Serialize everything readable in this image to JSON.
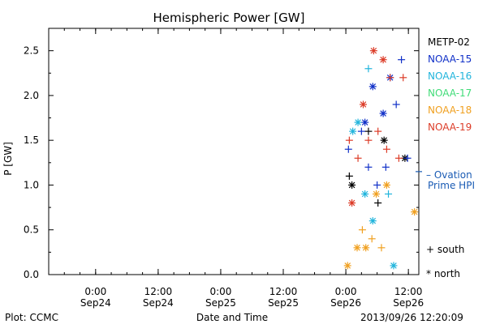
{
  "chart_data": {
    "type": "scatter",
    "title": "Hemispheric Power [GW]",
    "ylabel": "P [GW]",
    "xlabel": "Date and Time",
    "ylim": [
      0,
      2.75
    ],
    "xlim": [
      "2013-09-23 15:00",
      "2013-09-26 14:00"
    ],
    "yticks": [
      "0.0",
      "0.5",
      "1.0",
      "1.5",
      "2.0",
      "2.5"
    ],
    "xticks": [
      {
        "x": "2013-09-24 00:00",
        "time": "0:00",
        "date": "Sep24"
      },
      {
        "x": "2013-09-24 12:00",
        "time": "12:00",
        "date": "Sep24"
      },
      {
        "x": "2013-09-25 00:00",
        "time": "0:00",
        "date": "Sep25"
      },
      {
        "x": "2013-09-25 12:00",
        "time": "12:00",
        "date": "Sep25"
      },
      {
        "x": "2013-09-26 00:00",
        "time": "0:00",
        "date": "Sep26"
      },
      {
        "x": "2013-09-26 12:00",
        "time": "12:00",
        "date": "Sep26"
      }
    ],
    "series": [
      {
        "name": "METP-02",
        "color": "#000000",
        "points": [
          {
            "x": "2013-09-26 00:40",
            "y": 1.1,
            "hemisphere": "south"
          },
          {
            "x": "2013-09-26 01:10",
            "y": 1.0,
            "hemisphere": "north"
          },
          {
            "x": "2013-09-26 04:20",
            "y": 1.6,
            "hemisphere": "south"
          },
          {
            "x": "2013-09-26 06:10",
            "y": 0.8,
            "hemisphere": "south"
          },
          {
            "x": "2013-09-26 07:20",
            "y": 1.5,
            "hemisphere": "north"
          },
          {
            "x": "2013-09-26 11:20",
            "y": 1.3,
            "hemisphere": "north"
          }
        ]
      },
      {
        "name": "NOAA-15",
        "color": "#1030c8",
        "points": [
          {
            "x": "2013-09-26 00:30",
            "y": 1.4,
            "hemisphere": "south"
          },
          {
            "x": "2013-09-26 03:00",
            "y": 1.6,
            "hemisphere": "south"
          },
          {
            "x": "2013-09-26 03:40",
            "y": 1.7,
            "hemisphere": "north"
          },
          {
            "x": "2013-09-26 04:20",
            "y": 1.2,
            "hemisphere": "south"
          },
          {
            "x": "2013-09-26 05:10",
            "y": 2.1,
            "hemisphere": "north"
          },
          {
            "x": "2013-09-26 06:00",
            "y": 1.0,
            "hemisphere": "south"
          },
          {
            "x": "2013-09-26 07:10",
            "y": 1.8,
            "hemisphere": "north"
          },
          {
            "x": "2013-09-26 07:40",
            "y": 1.2,
            "hemisphere": "south"
          },
          {
            "x": "2013-09-26 08:30",
            "y": 2.2,
            "hemisphere": "north"
          },
          {
            "x": "2013-09-26 09:40",
            "y": 1.9,
            "hemisphere": "south"
          },
          {
            "x": "2013-09-26 10:40",
            "y": 2.4,
            "hemisphere": "south"
          },
          {
            "x": "2013-09-26 11:50",
            "y": 1.3,
            "hemisphere": "south"
          }
        ]
      },
      {
        "name": "NOAA-16",
        "color": "#20b4dc",
        "points": [
          {
            "x": "2013-09-26 01:20",
            "y": 1.6,
            "hemisphere": "north"
          },
          {
            "x": "2013-09-26 02:20",
            "y": 1.7,
            "hemisphere": "north"
          },
          {
            "x": "2013-09-26 03:40",
            "y": 0.9,
            "hemisphere": "north"
          },
          {
            "x": "2013-09-26 04:20",
            "y": 2.3,
            "hemisphere": "south"
          },
          {
            "x": "2013-09-26 05:10",
            "y": 0.6,
            "hemisphere": "north"
          },
          {
            "x": "2013-09-26 08:10",
            "y": 0.9,
            "hemisphere": "south"
          },
          {
            "x": "2013-09-26 09:10",
            "y": 0.1,
            "hemisphere": "north"
          }
        ]
      },
      {
        "name": "NOAA-17",
        "color": "#40dc78",
        "points": []
      },
      {
        "name": "NOAA-18",
        "color": "#f0a020",
        "points": [
          {
            "x": "2013-09-26 00:20",
            "y": 0.1,
            "hemisphere": "north"
          },
          {
            "x": "2013-09-26 02:10",
            "y": 0.3,
            "hemisphere": "north"
          },
          {
            "x": "2013-09-26 03:10",
            "y": 0.5,
            "hemisphere": "south"
          },
          {
            "x": "2013-09-26 03:50",
            "y": 0.3,
            "hemisphere": "north"
          },
          {
            "x": "2013-09-26 05:00",
            "y": 0.4,
            "hemisphere": "south"
          },
          {
            "x": "2013-09-26 05:50",
            "y": 0.9,
            "hemisphere": "north"
          },
          {
            "x": "2013-09-26 06:50",
            "y": 0.3,
            "hemisphere": "south"
          },
          {
            "x": "2013-09-26 07:50",
            "y": 1.0,
            "hemisphere": "north"
          },
          {
            "x": "2013-09-26 13:10",
            "y": 0.7,
            "hemisphere": "north"
          }
        ]
      },
      {
        "name": "NOAA-19",
        "color": "#dc3c28",
        "points": [
          {
            "x": "2013-09-26 00:40",
            "y": 1.5,
            "hemisphere": "south"
          },
          {
            "x": "2013-09-26 01:10",
            "y": 0.8,
            "hemisphere": "north"
          },
          {
            "x": "2013-09-26 02:20",
            "y": 1.3,
            "hemisphere": "south"
          },
          {
            "x": "2013-09-26 03:20",
            "y": 1.9,
            "hemisphere": "north"
          },
          {
            "x": "2013-09-26 04:20",
            "y": 1.5,
            "hemisphere": "south"
          },
          {
            "x": "2013-09-26 05:20",
            "y": 2.5,
            "hemisphere": "north"
          },
          {
            "x": "2013-09-26 06:10",
            "y": 1.6,
            "hemisphere": "south"
          },
          {
            "x": "2013-09-26 07:10",
            "y": 2.4,
            "hemisphere": "north"
          },
          {
            "x": "2013-09-26 07:50",
            "y": 1.4,
            "hemisphere": "south"
          },
          {
            "x": "2013-09-26 08:30",
            "y": 2.2,
            "hemisphere": "south"
          },
          {
            "x": "2013-09-26 10:10",
            "y": 1.3,
            "hemisphere": "south"
          },
          {
            "x": "2013-09-26 11:00",
            "y": 2.2,
            "hemisphere": "south"
          }
        ]
      }
    ],
    "symbols": {
      "south": "+",
      "north": "*"
    },
    "symbol_legend": [
      {
        "symbol": "+",
        "label": "south"
      },
      {
        "symbol": "*",
        "label": "north"
      }
    ],
    "annotation": {
      "text_line1": "– Ovation",
      "text_line2": "Prime HPI",
      "color": "#1a5bb4",
      "y": 1.15
    },
    "footer_left": "Plot: CCMC",
    "footer_right": "2013/09/26 12:20:09",
    "legend_placement": "right",
    "grid": false
  }
}
